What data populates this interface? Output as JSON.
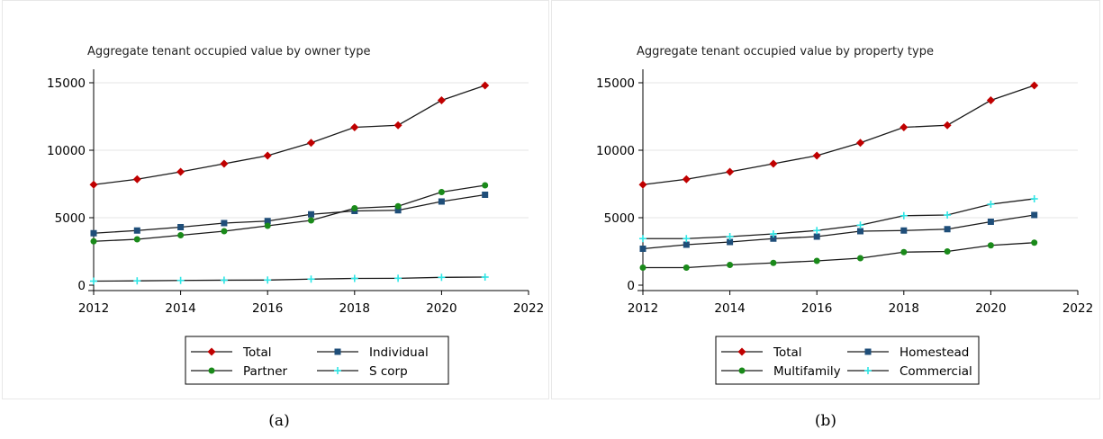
{
  "chart_data": [
    {
      "type": "line",
      "title": "Aggregate tenant occupied value by owner type",
      "xlabel": "",
      "ylabel": "",
      "x": [
        2012,
        2013,
        2014,
        2015,
        2016,
        2017,
        2018,
        2019,
        2020,
        2021
      ],
      "xlim": [
        2012,
        2022
      ],
      "ylim": [
        0,
        16000
      ],
      "xticks": [
        2012,
        2014,
        2016,
        2018,
        2020,
        2022
      ],
      "yticks": [
        0,
        5000,
        10000,
        15000
      ],
      "grid": true,
      "legend_position": "bottom",
      "series": [
        {
          "name": "Total",
          "color": "#c00000",
          "marker": "diamond",
          "values": [
            7450,
            7850,
            8400,
            9000,
            9600,
            10550,
            11700,
            11850,
            13700,
            14800
          ]
        },
        {
          "name": "Individual",
          "color": "#1f4e79",
          "marker": "square",
          "values": [
            3850,
            4050,
            4300,
            4600,
            4750,
            5250,
            5500,
            5550,
            6200,
            6700
          ]
        },
        {
          "name": "Partner",
          "color": "#1a8a1a",
          "marker": "circle",
          "values": [
            3250,
            3400,
            3700,
            4000,
            4400,
            4800,
            5700,
            5850,
            6900,
            7400
          ]
        },
        {
          "name": "S corp",
          "color": "#2ee6e6",
          "marker": "plus",
          "values": [
            300,
            320,
            350,
            370,
            380,
            450,
            500,
            510,
            580,
            600
          ]
        }
      ]
    },
    {
      "type": "line",
      "title": "Aggregate tenant occupied value by property type",
      "xlabel": "",
      "ylabel": "",
      "x": [
        2012,
        2013,
        2014,
        2015,
        2016,
        2017,
        2018,
        2019,
        2020,
        2021
      ],
      "xlim": [
        2012,
        2022
      ],
      "ylim": [
        0,
        16000
      ],
      "xticks": [
        2012,
        2014,
        2016,
        2018,
        2020,
        2022
      ],
      "yticks": [
        0,
        5000,
        10000,
        15000
      ],
      "grid": true,
      "legend_position": "bottom",
      "series": [
        {
          "name": "Total",
          "color": "#c00000",
          "marker": "diamond",
          "values": [
            7450,
            7850,
            8400,
            9000,
            9600,
            10550,
            11700,
            11850,
            13700,
            14800
          ]
        },
        {
          "name": "Homestead",
          "color": "#1f4e79",
          "marker": "square",
          "values": [
            2700,
            3000,
            3200,
            3450,
            3600,
            4000,
            4050,
            4150,
            4700,
            5200
          ]
        },
        {
          "name": "Multifamily",
          "color": "#1a8a1a",
          "marker": "circle",
          "values": [
            1300,
            1300,
            1500,
            1650,
            1800,
            2000,
            2450,
            2500,
            2950,
            3150
          ]
        },
        {
          "name": "Commercial",
          "color": "#2ee6e6",
          "marker": "plus",
          "values": [
            3450,
            3450,
            3600,
            3800,
            4050,
            4450,
            5150,
            5200,
            6000,
            6400
          ]
        }
      ]
    }
  ],
  "captions": [
    "(a)",
    "(b)"
  ]
}
